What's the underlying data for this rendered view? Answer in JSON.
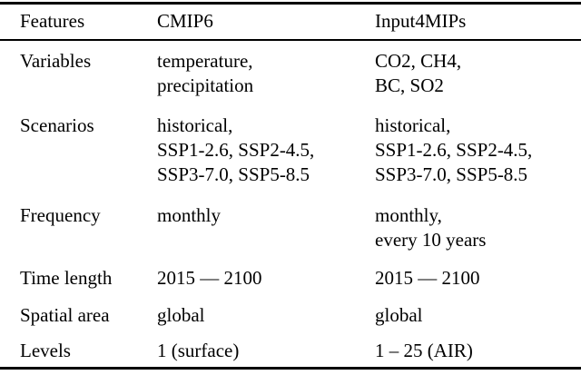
{
  "table": {
    "columns": [
      "Features",
      "CMIP6",
      "Input4MIPs"
    ],
    "rows": [
      {
        "feature": "Variables",
        "cmip6": "temperature,\nprecipitation",
        "input4mips": "CO2, CH4,\nBC, SO2"
      },
      {
        "feature": "Scenarios",
        "cmip6": "historical,\nSSP1-2.6, SSP2-4.5,\nSSP3-7.0, SSP5-8.5",
        "input4mips": "historical,\nSSP1-2.6, SSP2-4.5,\nSSP3-7.0, SSP5-8.5"
      },
      {
        "feature": "Frequency",
        "cmip6": "monthly",
        "input4mips": "monthly,\nevery 10 years"
      },
      {
        "feature": "Time length",
        "cmip6": "2015 — 2100",
        "input4mips": "2015 — 2100"
      },
      {
        "feature": "Spatial area",
        "cmip6": "global",
        "input4mips": "global"
      },
      {
        "feature": "Levels",
        "cmip6": "1 (surface)",
        "input4mips": "1 – 25 (AIR)"
      }
    ],
    "colors": {
      "text": "#000000",
      "background": "#ffffff",
      "rule": "#000000"
    }
  }
}
